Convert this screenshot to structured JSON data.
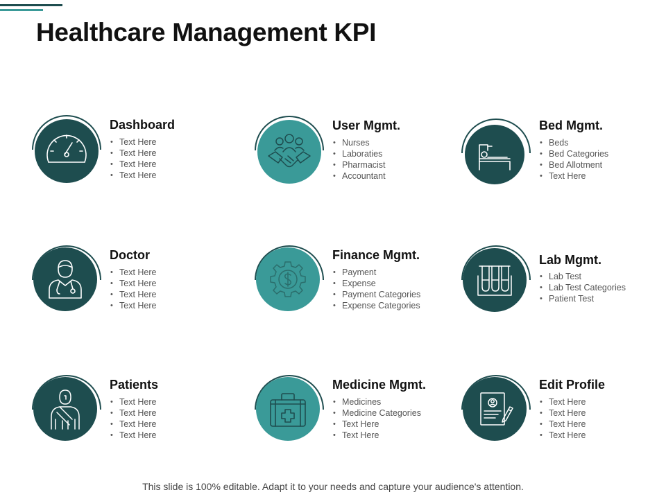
{
  "title": "Healthcare Management KPI",
  "footer": "This slide is 100% editable. Adapt it to your needs and capture your audience's attention.",
  "colors": {
    "dark_teal": "#1e4d4f",
    "light_teal": "#3a9a98",
    "icon_stroke": "#ffffff",
    "icon_stroke_light": "#2b6e6c"
  },
  "cards": [
    {
      "title": "Dashboard",
      "icon": "speedometer-icon",
      "items": [
        "Text Here",
        "Text Here",
        "Text Here",
        "Text Here"
      ]
    },
    {
      "title": "User Mgmt.",
      "icon": "handshake-team-icon",
      "items": [
        "Nurses",
        "Laboraties",
        "Pharmacist",
        "Accountant"
      ]
    },
    {
      "title": "Bed Mgmt.",
      "icon": "hospital-bed-icon",
      "items": [
        "Beds",
        "Bed Categories",
        "Bed Allotment",
        "Text Here"
      ]
    },
    {
      "title": "Doctor",
      "icon": "doctor-icon",
      "items": [
        "Text Here",
        "Text Here",
        "Text Here",
        "Text Here"
      ]
    },
    {
      "title": "Finance Mgmt.",
      "icon": "gear-dollar-icon",
      "items": [
        "Payment",
        "Expense",
        "Payment Categories",
        "Expense Categories"
      ]
    },
    {
      "title": "Lab Mgmt.",
      "icon": "test-tubes-icon",
      "items": [
        "Lab Test",
        "Lab Test Categories",
        "Patient Test"
      ]
    },
    {
      "title": "Patients",
      "icon": "patient-icon",
      "items": [
        "Text Here",
        "Text Here",
        "Text Here",
        "Text Here"
      ]
    },
    {
      "title": "Medicine Mgmt.",
      "icon": "medical-kit-icon",
      "items": [
        "Medicines",
        "Medicine Categories",
        "Text Here",
        "Text Here"
      ]
    },
    {
      "title": "Edit Profile",
      "icon": "edit-profile-icon",
      "items": [
        "Text Here",
        "Text Here",
        "Text Here",
        "Text Here"
      ]
    }
  ]
}
